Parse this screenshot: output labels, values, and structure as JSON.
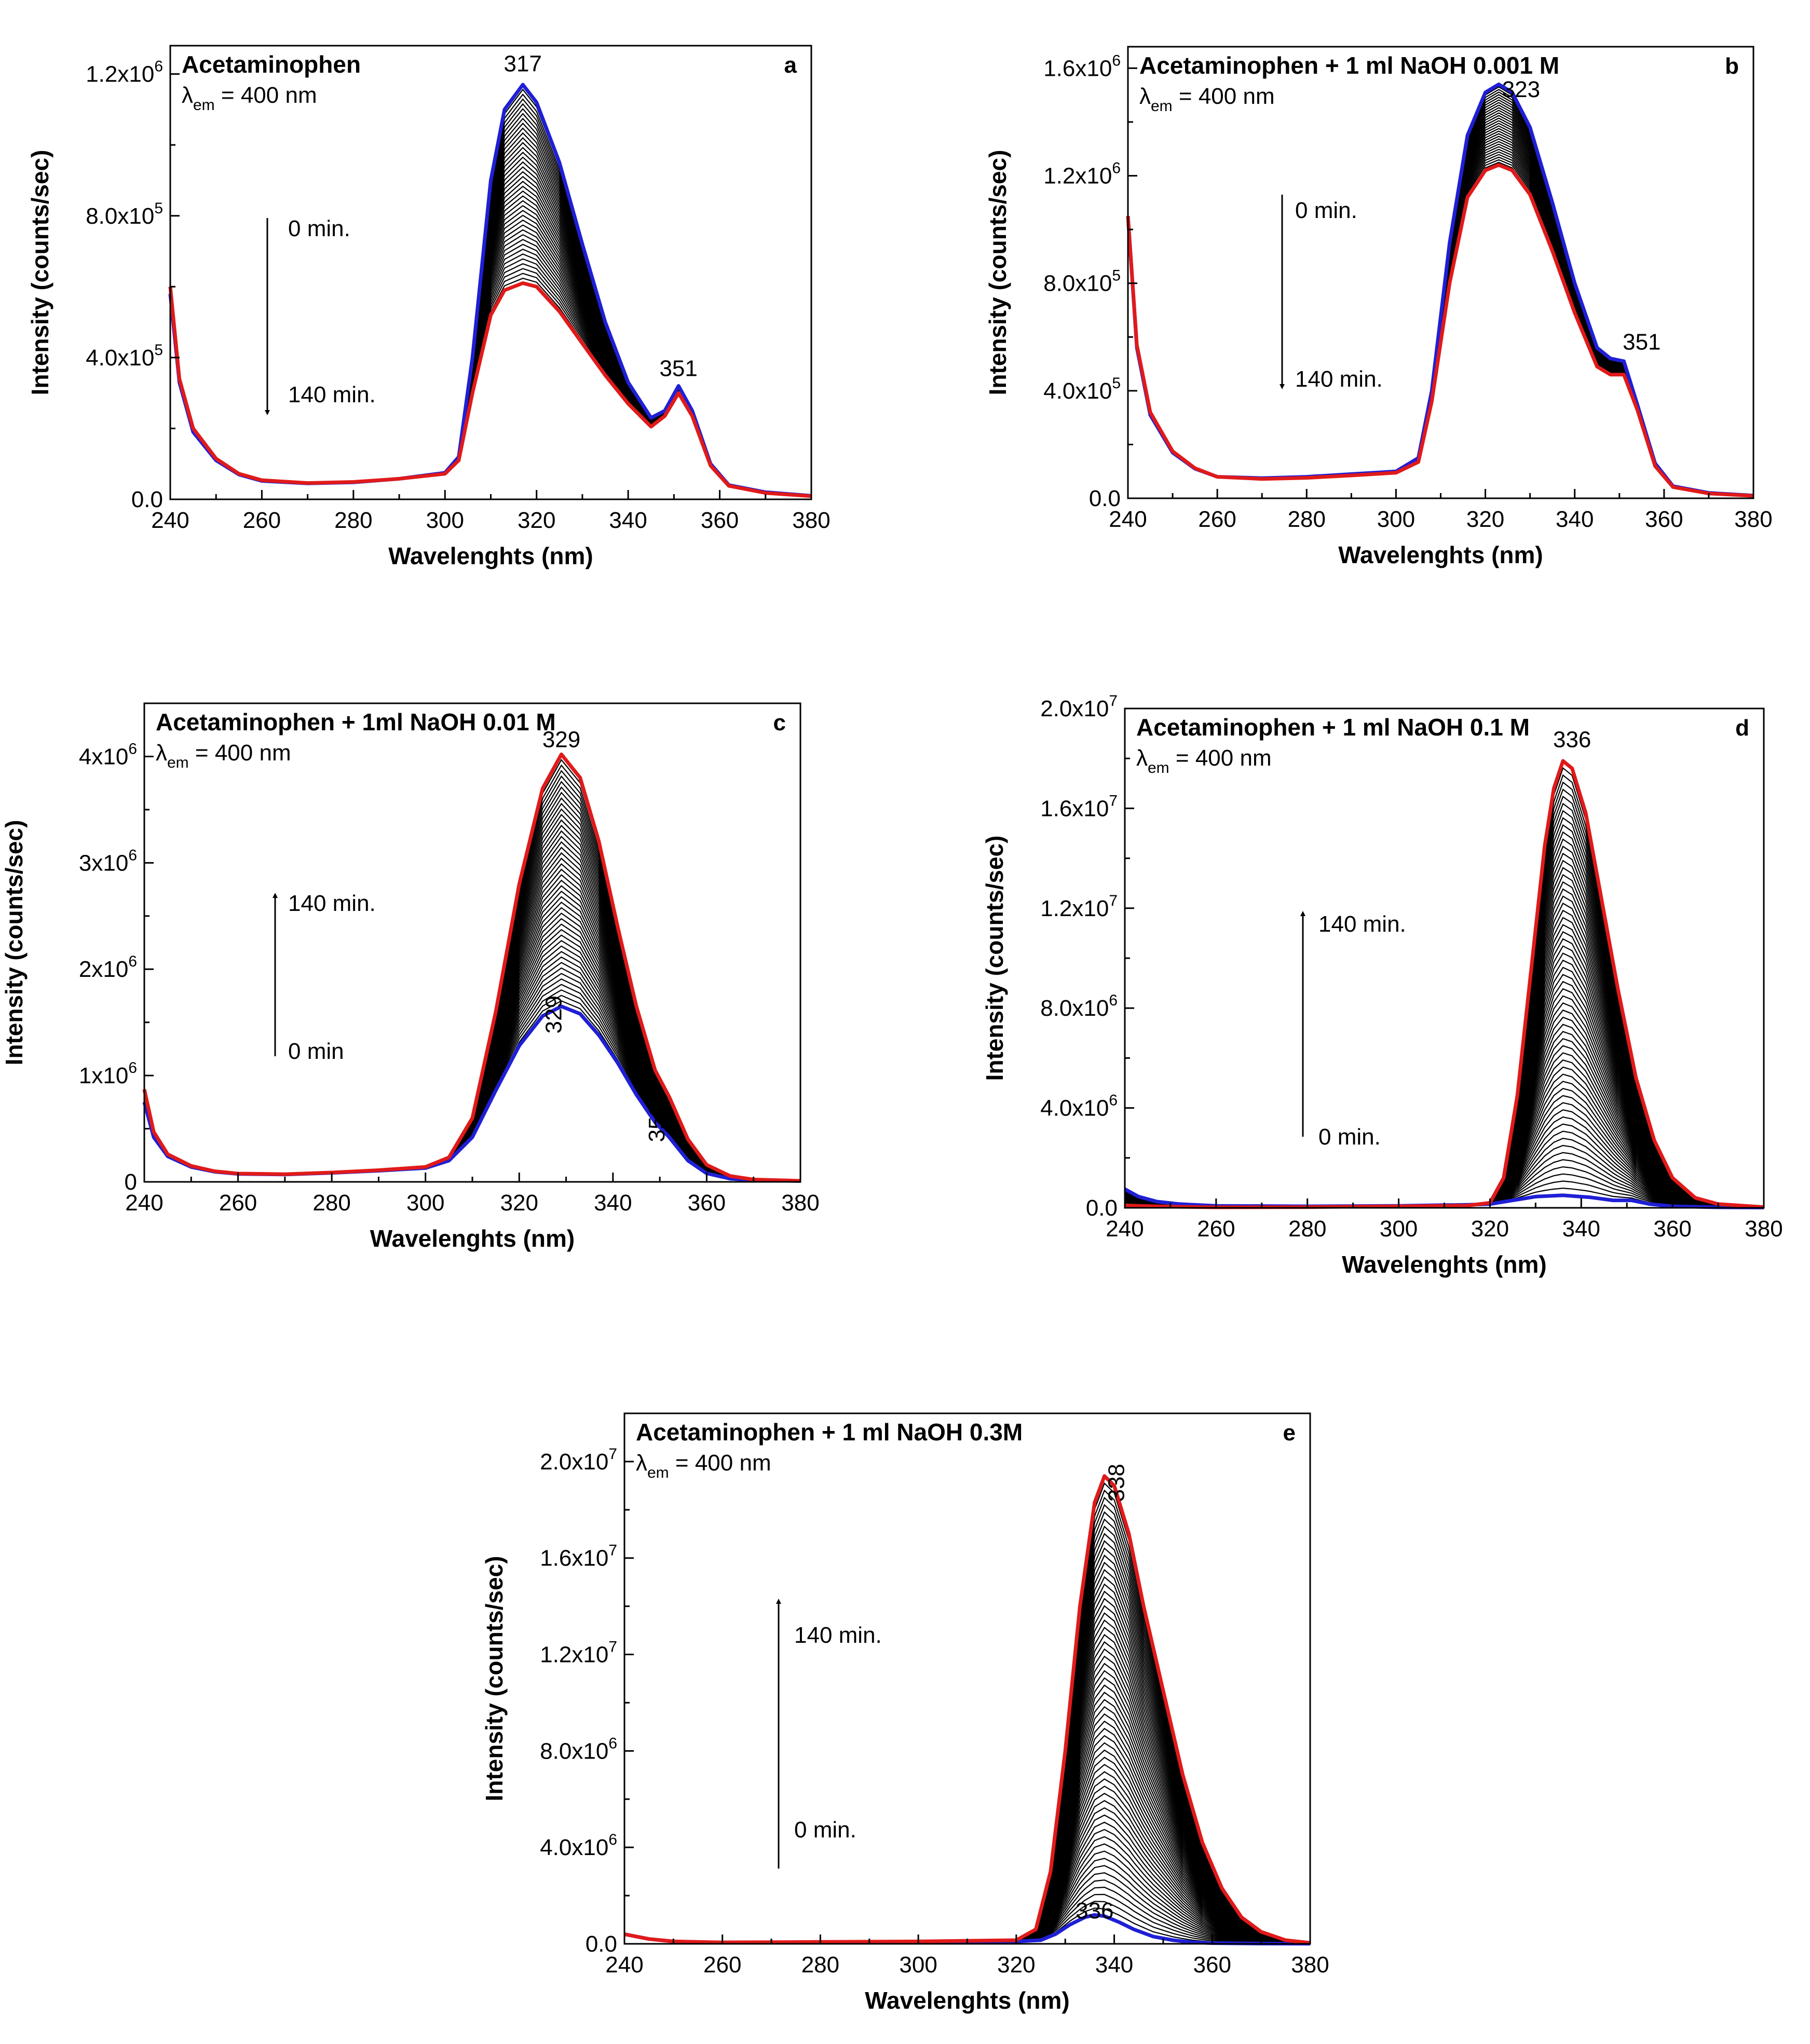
{
  "figure": {
    "panels": [
      {
        "id": "a",
        "letter": "a",
        "title": "Acetaminophen",
        "lambda_prefix": "λ",
        "lambda_sub": "em",
        "lambda_suffix": " = 400 nm",
        "xlabel": "Wavelenghts (nm)",
        "ylabel": "Intensity (counts/sec)",
        "peak_labels": [
          {
            "text": "317",
            "x": 317,
            "y": 1190000,
            "rotate": false
          },
          {
            "text": "351",
            "x": 351,
            "y": 330000,
            "rotate": false
          }
        ],
        "arrow": {
          "direction": "down",
          "top_label": "0 min.",
          "bottom_label": "140 min."
        }
      },
      {
        "id": "b",
        "letter": "b",
        "title": "Acetaminophen + 1 ml NaOH  0.001 M",
        "lambda_prefix": "λ",
        "lambda_sub": "em",
        "lambda_suffix": " = 400 nm",
        "xlabel": "Wavelenghts (nm)",
        "ylabel": "Intensity (counts/sec)",
        "peak_labels": [
          {
            "text": "323",
            "x": 328,
            "y": 1470000,
            "rotate": false
          },
          {
            "text": "351",
            "x": 355,
            "y": 530000,
            "rotate": false
          }
        ],
        "arrow": {
          "direction": "down",
          "top_label": "0 min.",
          "bottom_label": "140 min."
        }
      },
      {
        "id": "c",
        "letter": "c",
        "title": "Acetaminophen + 1ml NaOH 0.01 M",
        "lambda_prefix": "λ",
        "lambda_sub": "em",
        "lambda_suffix": " = 400 nm",
        "xlabel": "Wavelenghts (nm)",
        "ylabel": "Intensity (counts/sec)",
        "peak_labels": [
          {
            "text": "329",
            "x": 329,
            "y": 4030000,
            "rotate": false
          },
          {
            "text": "329",
            "x": 329,
            "y": 1500000,
            "rotate": true
          },
          {
            "text": "351",
            "x": 351,
            "y": 480000,
            "rotate": true
          }
        ],
        "arrow": {
          "direction": "up",
          "top_label": "140 min.",
          "bottom_label": "0 min"
        }
      },
      {
        "id": "d",
        "letter": "d",
        "title": "Acetaminophen + 1 ml NaOH 0.1 M",
        "lambda_prefix": "λ",
        "lambda_sub": "em",
        "lambda_suffix": " = 400 nm",
        "xlabel": "Wavelenghts (nm)",
        "ylabel": "Intensity (counts/sec)",
        "peak_labels": [
          {
            "text": "336",
            "x": 338,
            "y": 18200000,
            "rotate": false
          }
        ],
        "arrow": {
          "direction": "up",
          "top_label": "140 min.",
          "bottom_label": "0 min."
        }
      },
      {
        "id": "e",
        "letter": "e",
        "title": "Acetaminophen + 1 ml NaOH 0.3M",
        "lambda_prefix": "λ",
        "lambda_sub": "em",
        "lambda_suffix": " = 400 nm",
        "xlabel": "Wavelenghts (nm)",
        "ylabel": "Intensity (counts/sec)",
        "peak_labels": [
          {
            "text": "338",
            "x": 342,
            "y": 18800000,
            "rotate": true
          },
          {
            "text": "336",
            "x": 336,
            "y": 800000,
            "rotate": false
          }
        ],
        "arrow": {
          "direction": "up",
          "top_label": "140 min.",
          "bottom_label": "0 min."
        }
      }
    ]
  },
  "colors": {
    "first_spectrum_a_b": "#1f1fd6",
    "last_spectrum_a_b": "#e01a1a",
    "first_spectrum_c_d_e": "#1f1fd6",
    "last_spectrum_c_d_e": "#e01a1a",
    "intermediate_spectra": "#000000"
  },
  "chart_data": [
    {
      "panel": "a",
      "type": "line",
      "xlim": [
        240,
        380
      ],
      "ylim": [
        0,
        1280000
      ],
      "xticks": [
        240,
        260,
        280,
        300,
        320,
        340,
        360,
        380
      ],
      "yticks": [
        {
          "value": 0,
          "mant": "0.0",
          "exp": ""
        },
        {
          "value": 400000,
          "mant": "4.0x10",
          "exp": "5"
        },
        {
          "value": 800000,
          "mant": "8.0x10",
          "exp": "5"
        },
        {
          "value": 1200000,
          "mant": "1.2x10",
          "exp": "6"
        }
      ],
      "n_intermediate_spectra": 40,
      "series": [
        {
          "role": "first",
          "time_min": 0,
          "x": [
            240,
            242,
            245,
            250,
            255,
            260,
            270,
            280,
            290,
            300,
            303,
            306,
            310,
            313,
            317,
            320,
            325,
            330,
            335,
            340,
            345,
            348,
            351,
            354,
            358,
            362,
            370,
            380
          ],
          "y": [
            580000,
            330000,
            190000,
            110000,
            70000,
            52000,
            45000,
            48000,
            58000,
            75000,
            120000,
            400000,
            900000,
            1100000,
            1170000,
            1120000,
            950000,
            720000,
            500000,
            330000,
            230000,
            250000,
            320000,
            250000,
            100000,
            40000,
            20000,
            10000
          ]
        },
        {
          "role": "last",
          "time_min": 140,
          "x": [
            240,
            242,
            245,
            250,
            255,
            260,
            270,
            280,
            290,
            300,
            303,
            306,
            310,
            313,
            317,
            320,
            325,
            330,
            335,
            340,
            345,
            348,
            351,
            354,
            358,
            362,
            370,
            380
          ],
          "y": [
            600000,
            340000,
            200000,
            115000,
            72000,
            54000,
            46000,
            49000,
            58000,
            72000,
            110000,
            300000,
            520000,
            590000,
            610000,
            600000,
            530000,
            440000,
            350000,
            270000,
            205000,
            235000,
            300000,
            235000,
            95000,
            38000,
            18000,
            9000
          ]
        }
      ]
    },
    {
      "panel": "b",
      "type": "line",
      "xlim": [
        240,
        380
      ],
      "ylim": [
        0,
        1680000
      ],
      "xticks": [
        240,
        260,
        280,
        300,
        320,
        340,
        360,
        380
      ],
      "yticks": [
        {
          "value": 0,
          "mant": "0.0",
          "exp": ""
        },
        {
          "value": 400000,
          "mant": "4.0x10",
          "exp": "5"
        },
        {
          "value": 800000,
          "mant": "8.0x10",
          "exp": "5"
        },
        {
          "value": 1200000,
          "mant": "1.2x10",
          "exp": "6"
        },
        {
          "value": 1600000,
          "mant": "1.6x10",
          "exp": "6"
        }
      ],
      "n_intermediate_spectra": 30,
      "series": [
        {
          "role": "first",
          "time_min": 0,
          "x": [
            240,
            242,
            245,
            250,
            255,
            260,
            270,
            280,
            290,
            300,
            305,
            308,
            312,
            316,
            320,
            323,
            326,
            330,
            335,
            340,
            345,
            348,
            351,
            354,
            358,
            362,
            370,
            380
          ],
          "y": [
            1050000,
            560000,
            310000,
            170000,
            110000,
            80000,
            75000,
            80000,
            90000,
            100000,
            150000,
            400000,
            950000,
            1350000,
            1510000,
            1540000,
            1510000,
            1380000,
            1100000,
            800000,
            560000,
            520000,
            510000,
            350000,
            130000,
            45000,
            20000,
            10000
          ]
        },
        {
          "role": "last",
          "time_min": 140,
          "x": [
            240,
            242,
            245,
            250,
            255,
            260,
            270,
            280,
            290,
            300,
            305,
            308,
            312,
            316,
            320,
            323,
            326,
            330,
            335,
            340,
            345,
            348,
            351,
            354,
            358,
            362,
            370,
            380
          ],
          "y": [
            1050000,
            570000,
            320000,
            175000,
            112000,
            80000,
            72000,
            76000,
            85000,
            95000,
            135000,
            360000,
            800000,
            1120000,
            1220000,
            1240000,
            1220000,
            1130000,
            920000,
            690000,
            490000,
            460000,
            460000,
            330000,
            120000,
            42000,
            18000,
            9000
          ]
        }
      ]
    },
    {
      "panel": "c",
      "type": "line",
      "xlim": [
        240,
        380
      ],
      "ylim": [
        0,
        4500000
      ],
      "xticks": [
        240,
        260,
        280,
        300,
        320,
        340,
        360,
        380
      ],
      "yticks": [
        {
          "value": 0,
          "mant": "0",
          "exp": ""
        },
        {
          "value": 1000000,
          "mant": "1x10",
          "exp": "6"
        },
        {
          "value": 2000000,
          "mant": "2x10",
          "exp": "6"
        },
        {
          "value": 3000000,
          "mant": "3x10",
          "exp": "6"
        },
        {
          "value": 4000000,
          "mant": "4x10",
          "exp": "6"
        }
      ],
      "n_intermediate_spectra": 45,
      "series": [
        {
          "role": "first",
          "time_min": 0,
          "x": [
            240,
            242,
            245,
            250,
            255,
            260,
            270,
            280,
            290,
            300,
            305,
            310,
            315,
            320,
            325,
            329,
            333,
            337,
            341,
            345,
            349,
            352,
            356,
            360,
            365,
            370,
            380
          ],
          "y": [
            750000,
            420000,
            240000,
            140000,
            95000,
            75000,
            70000,
            85000,
            105000,
            130000,
            200000,
            420000,
            860000,
            1280000,
            1560000,
            1650000,
            1580000,
            1380000,
            1120000,
            820000,
            560000,
            420000,
            200000,
            80000,
            30000,
            15000,
            8000
          ]
        },
        {
          "role": "last",
          "time_min": 140,
          "x": [
            240,
            242,
            245,
            250,
            255,
            260,
            270,
            280,
            290,
            300,
            305,
            310,
            315,
            320,
            325,
            329,
            333,
            337,
            341,
            345,
            349,
            352,
            356,
            360,
            365,
            370,
            380
          ],
          "y": [
            870000,
            470000,
            260000,
            150000,
            100000,
            78000,
            72000,
            88000,
            110000,
            140000,
            230000,
            600000,
            1600000,
            2800000,
            3700000,
            4020000,
            3800000,
            3200000,
            2400000,
            1650000,
            1050000,
            800000,
            400000,
            160000,
            55000,
            22000,
            10000
          ]
        }
      ]
    },
    {
      "panel": "d",
      "type": "line",
      "xlim": [
        240,
        380
      ],
      "ylim": [
        0,
        20000000
      ],
      "xticks": [
        240,
        260,
        280,
        300,
        320,
        340,
        360,
        380
      ],
      "yticks": [
        {
          "value": 0,
          "mant": "0.0",
          "exp": ""
        },
        {
          "value": 4000000,
          "mant": "4.0x10",
          "exp": "6"
        },
        {
          "value": 8000000,
          "mant": "8.0x10",
          "exp": "6"
        },
        {
          "value": 12000000,
          "mant": "1.2x10",
          "exp": "7"
        },
        {
          "value": 16000000,
          "mant": "1.6x10",
          "exp": "7"
        },
        {
          "value": 20000000,
          "mant": "2.0x10",
          "exp": "7"
        }
      ],
      "n_intermediate_spectra": 60,
      "series": [
        {
          "role": "first",
          "time_min": 0,
          "x": [
            240,
            243,
            247,
            252,
            260,
            280,
            300,
            315,
            320,
            325,
            330,
            336,
            342,
            347,
            351,
            355,
            360,
            370,
            380
          ],
          "y": [
            750000,
            450000,
            250000,
            150000,
            80000,
            60000,
            80000,
            120000,
            150000,
            300000,
            450000,
            500000,
            420000,
            300000,
            300000,
            150000,
            60000,
            20000,
            10000
          ]
        },
        {
          "role": "last",
          "time_min": 140,
          "x": [
            240,
            243,
            247,
            252,
            260,
            280,
            300,
            315,
            320,
            323,
            326,
            329,
            332,
            334,
            336,
            338,
            341,
            344,
            348,
            352,
            356,
            360,
            365,
            370,
            380
          ],
          "y": [
            100000,
            80000,
            60000,
            40000,
            20000,
            30000,
            60000,
            90000,
            200000,
            1200000,
            4500000,
            9500000,
            14500000,
            16800000,
            17900000,
            17600000,
            15800000,
            12800000,
            8800000,
            5200000,
            2700000,
            1200000,
            400000,
            150000,
            30000
          ]
        }
      ]
    },
    {
      "panel": "e",
      "type": "line",
      "xlim": [
        240,
        380
      ],
      "ylim": [
        0,
        22000000
      ],
      "xticks": [
        240,
        260,
        280,
        300,
        320,
        340,
        360,
        380
      ],
      "yticks": [
        {
          "value": 0,
          "mant": "0.0",
          "exp": ""
        },
        {
          "value": 4000000,
          "mant": "4.0x10",
          "exp": "6"
        },
        {
          "value": 8000000,
          "mant": "8.0x10",
          "exp": "6"
        },
        {
          "value": 12000000,
          "mant": "1.2x10",
          "exp": "7"
        },
        {
          "value": 16000000,
          "mant": "1.6x10",
          "exp": "7"
        },
        {
          "value": 20000000,
          "mant": "2.0x10",
          "exp": "7"
        }
      ],
      "n_intermediate_spectra": 60,
      "series": [
        {
          "role": "first",
          "time_min": 0,
          "x": [
            240,
            245,
            250,
            260,
            280,
            300,
            320,
            325,
            328,
            331,
            334,
            336,
            338,
            341,
            344,
            348,
            352,
            356,
            360,
            370,
            380
          ],
          "y": [
            400000,
            200000,
            100000,
            50000,
            60000,
            80000,
            100000,
            150000,
            400000,
            800000,
            1100000,
            1200000,
            1150000,
            900000,
            600000,
            300000,
            150000,
            60000,
            30000,
            10000,
            5000
          ]
        },
        {
          "role": "last",
          "time_min": 140,
          "x": [
            240,
            245,
            250,
            260,
            280,
            300,
            320,
            324,
            327,
            330,
            333,
            336,
            338,
            340,
            343,
            346,
            350,
            354,
            358,
            362,
            366,
            370,
            375,
            380
          ],
          "y": [
            400000,
            200000,
            100000,
            60000,
            80000,
            100000,
            150000,
            600000,
            3000000,
            8000000,
            14000000,
            18300000,
            19400000,
            19000000,
            17000000,
            14000000,
            10500000,
            7000000,
            4200000,
            2300000,
            1100000,
            500000,
            150000,
            40000
          ]
        }
      ]
    }
  ]
}
